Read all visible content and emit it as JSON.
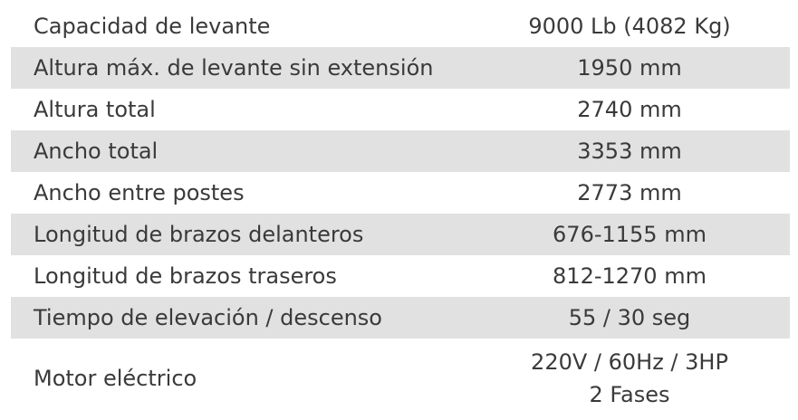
{
  "specs": {
    "rows": [
      {
        "label": "Capacidad de levante",
        "value": "9000 Lb (4082 Kg)"
      },
      {
        "label": "Altura máx. de levante sin extensión",
        "value": "1950 mm"
      },
      {
        "label": "Altura total",
        "value": "2740 mm"
      },
      {
        "label": "Ancho total",
        "value": "3353 mm"
      },
      {
        "label": "Ancho entre postes",
        "value": "2773 mm"
      },
      {
        "label": "Longitud de brazos delanteros",
        "value": "676-1155 mm"
      },
      {
        "label": "Longitud de brazos traseros",
        "value": "812-1270 mm"
      },
      {
        "label": "Tiempo de elevación / descenso",
        "value": "55 / 30 seg"
      }
    ],
    "motor": {
      "label": "Motor eléctrico",
      "value_line1": "220V / 60Hz / 3HP",
      "value_line2": "2 Fases"
    }
  }
}
